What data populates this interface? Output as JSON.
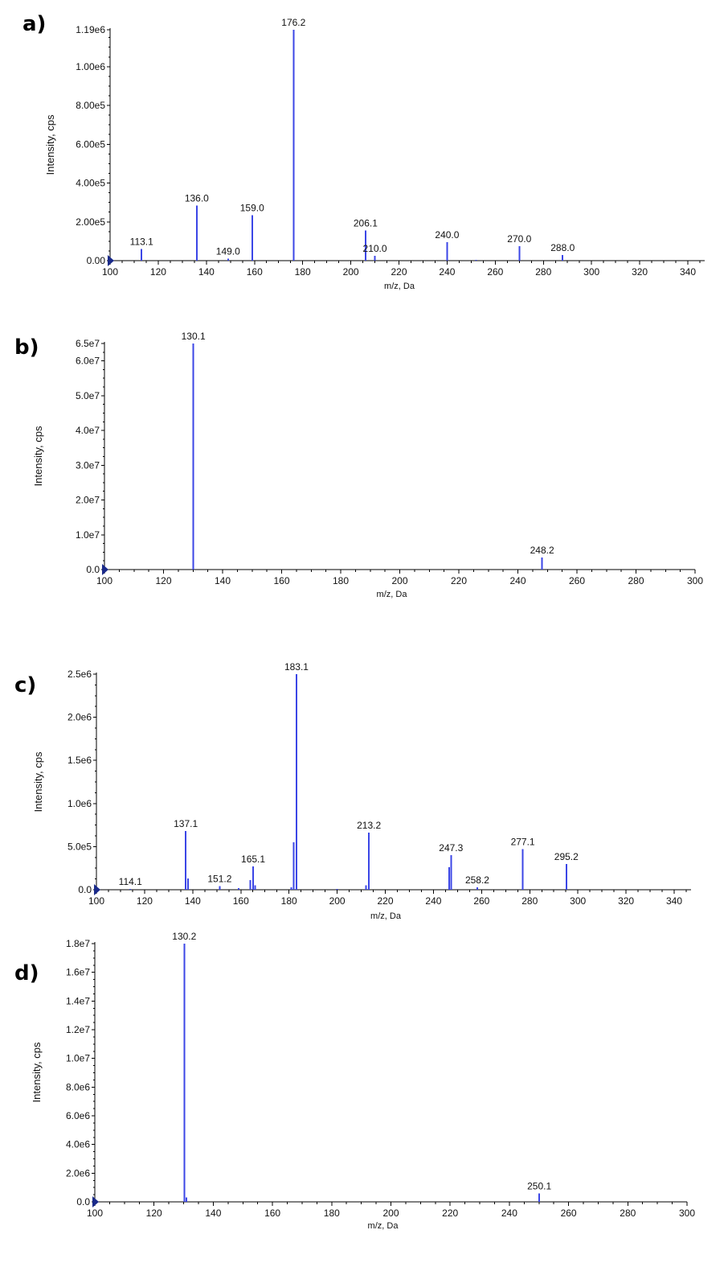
{
  "chart_data": [
    {
      "panel": "a)",
      "type": "bar",
      "xlabel": "m/z, Da",
      "ylabel": "Intensity, cps",
      "xlim": [
        100,
        347
      ],
      "ylim": [
        0,
        1190000
      ],
      "xticks": [
        100,
        120,
        140,
        160,
        180,
        200,
        220,
        240,
        260,
        280,
        300,
        320,
        340
      ],
      "yticks": [
        {
          "value": 0,
          "label": "0.00"
        },
        {
          "value": 200000,
          "label": "2.00e5"
        },
        {
          "value": 400000,
          "label": "4.00e5"
        },
        {
          "value": 600000,
          "label": "6.00e5"
        },
        {
          "value": 800000,
          "label": "8.00e5"
        },
        {
          "value": 1000000,
          "label": "1.00e6"
        },
        {
          "value": 1190000,
          "label": "1.19e6"
        }
      ],
      "peaks": [
        {
          "x": 113.1,
          "y": 60000,
          "label": "113.1"
        },
        {
          "x": 136.0,
          "y": 285000,
          "label": "136.0"
        },
        {
          "x": 149.0,
          "y": 10000,
          "label": "149.0"
        },
        {
          "x": 159.0,
          "y": 235000,
          "label": "159.0"
        },
        {
          "x": 176.2,
          "y": 1190000,
          "label": "176.2"
        },
        {
          "x": 206.1,
          "y": 155000,
          "label": "206.1"
        },
        {
          "x": 210.0,
          "y": 25000,
          "label": "210.0"
        },
        {
          "x": 240.0,
          "y": 95000,
          "label": "240.0"
        },
        {
          "x": 270.0,
          "y": 75000,
          "label": "270.0"
        },
        {
          "x": 288.0,
          "y": 28000,
          "label": "288.0"
        },
        {
          "x": 252.0,
          "y": 4000,
          "label": ""
        }
      ]
    },
    {
      "panel": "b)",
      "type": "bar",
      "xlabel": "m/z, Da",
      "ylabel": "Intensity, cps",
      "xlim": [
        100,
        300
      ],
      "ylim": [
        0,
        65000000
      ],
      "xticks": [
        100,
        120,
        140,
        160,
        180,
        200,
        220,
        240,
        260,
        280,
        300
      ],
      "yticks": [
        {
          "value": 0,
          "label": "0.0"
        },
        {
          "value": 10000000,
          "label": "1.0e7"
        },
        {
          "value": 20000000,
          "label": "2.0e7"
        },
        {
          "value": 30000000,
          "label": "3.0e7"
        },
        {
          "value": 40000000,
          "label": "4.0e7"
        },
        {
          "value": 50000000,
          "label": "5.0e7"
        },
        {
          "value": 60000000,
          "label": "6.0e7"
        },
        {
          "value": 65000000,
          "label": "6.5e7"
        }
      ],
      "peaks": [
        {
          "x": 130.1,
          "y": 65000000,
          "label": "130.1"
        },
        {
          "x": 248.2,
          "y": 3500000,
          "label": "248.2"
        }
      ]
    },
    {
      "panel": "c)",
      "type": "bar",
      "xlabel": "m/z, Da",
      "ylabel": "Intensity, cps",
      "xlim": [
        100,
        347
      ],
      "ylim": [
        0,
        2500000
      ],
      "xticks": [
        100,
        120,
        140,
        160,
        180,
        200,
        220,
        240,
        260,
        280,
        300,
        320,
        340
      ],
      "yticks": [
        {
          "value": 0,
          "label": "0.0"
        },
        {
          "value": 500000,
          "label": "5.0e5"
        },
        {
          "value": 1000000,
          "label": "1.0e6"
        },
        {
          "value": 1500000,
          "label": "1.5e6"
        },
        {
          "value": 2000000,
          "label": "2.0e6"
        },
        {
          "value": 2500000,
          "label": "2.5e6"
        }
      ],
      "peaks": [
        {
          "x": 114.1,
          "y": 10000,
          "label": "114.1"
        },
        {
          "x": 137.1,
          "y": 680000,
          "label": "137.1"
        },
        {
          "x": 138.0,
          "y": 130000,
          "label": ""
        },
        {
          "x": 151.2,
          "y": 40000,
          "label": "151.2"
        },
        {
          "x": 159.0,
          "y": 20000,
          "label": ""
        },
        {
          "x": 164.0,
          "y": 110000,
          "label": ""
        },
        {
          "x": 165.1,
          "y": 270000,
          "label": "165.1"
        },
        {
          "x": 166.0,
          "y": 50000,
          "label": ""
        },
        {
          "x": 181.0,
          "y": 30000,
          "label": ""
        },
        {
          "x": 182.0,
          "y": 550000,
          "label": ""
        },
        {
          "x": 183.1,
          "y": 2500000,
          "label": "183.1"
        },
        {
          "x": 200.0,
          "y": 10000,
          "label": ""
        },
        {
          "x": 212.0,
          "y": 50000,
          "label": ""
        },
        {
          "x": 213.2,
          "y": 660000,
          "label": "213.2"
        },
        {
          "x": 246.5,
          "y": 260000,
          "label": ""
        },
        {
          "x": 247.3,
          "y": 400000,
          "label": "247.3"
        },
        {
          "x": 258.2,
          "y": 30000,
          "label": "258.2"
        },
        {
          "x": 277.1,
          "y": 470000,
          "label": "277.1"
        },
        {
          "x": 295.2,
          "y": 300000,
          "label": "295.2"
        }
      ]
    },
    {
      "panel": "d)",
      "type": "bar",
      "xlabel": "m/z, Da",
      "ylabel": "Intensity, cps",
      "xlim": [
        100,
        300
      ],
      "ylim": [
        0,
        18000000
      ],
      "xticks": [
        100,
        120,
        140,
        160,
        180,
        200,
        220,
        240,
        260,
        280,
        300
      ],
      "yticks": [
        {
          "value": 0,
          "label": "0.0"
        },
        {
          "value": 2000000,
          "label": "2.0e6"
        },
        {
          "value": 4000000,
          "label": "4.0e6"
        },
        {
          "value": 6000000,
          "label": "6.0e6"
        },
        {
          "value": 8000000,
          "label": "8.0e6"
        },
        {
          "value": 10000000,
          "label": "1.0e7"
        },
        {
          "value": 12000000,
          "label": "1.2e7"
        },
        {
          "value": 14000000,
          "label": "1.4e7"
        },
        {
          "value": 16000000,
          "label": "1.6e7"
        },
        {
          "value": 18000000,
          "label": "1.8e7"
        }
      ],
      "peaks": [
        {
          "x": 130.2,
          "y": 18000000,
          "label": "130.2"
        },
        {
          "x": 131.0,
          "y": 300000,
          "label": ""
        },
        {
          "x": 250.1,
          "y": 600000,
          "label": "250.1"
        }
      ]
    }
  ]
}
